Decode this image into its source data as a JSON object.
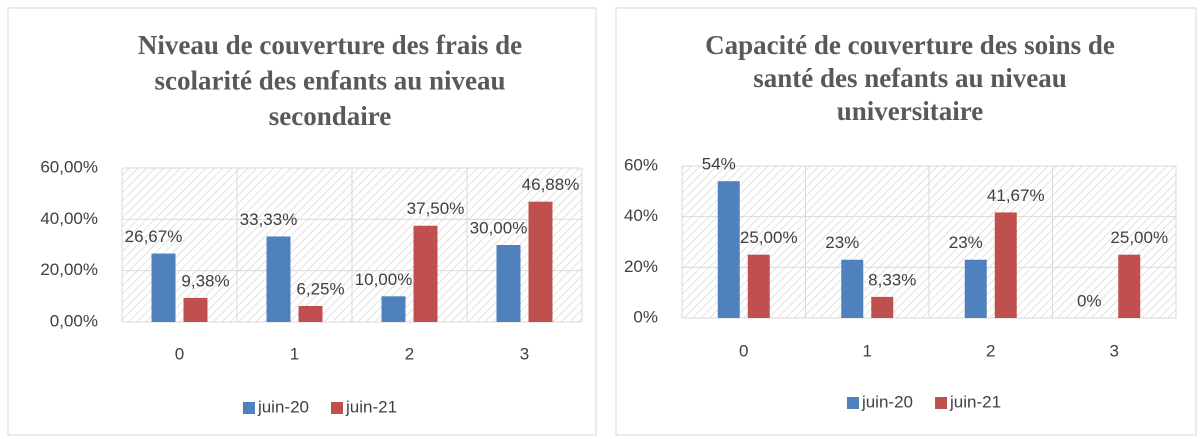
{
  "chart_data": [
    {
      "type": "bar",
      "title": "Niveau de couverture des frais de scolarité des enfants au niveau secondaire",
      "categories": [
        "0",
        "1",
        "2",
        "3"
      ],
      "series": [
        {
          "name": "juin-20",
          "color": "#4f81bd",
          "values": [
            26.67,
            33.33,
            10.0,
            30.0
          ],
          "value_labels": [
            "26,67%",
            "33,33%",
            "10,00%",
            "30,00%"
          ]
        },
        {
          "name": "juin-21",
          "color": "#c0504d",
          "values": [
            9.38,
            6.25,
            37.5,
            46.88
          ],
          "value_labels": [
            "9,38%",
            "6,25%",
            "37,50%",
            "46,88%"
          ]
        }
      ],
      "ylim": [
        0,
        60
      ],
      "yticks": [
        {
          "value": 0,
          "label": "0,00%"
        },
        {
          "value": 20,
          "label": "20,00%"
        },
        {
          "value": 40,
          "label": "40,00%"
        },
        {
          "value": 60,
          "label": "60,00%"
        }
      ],
      "grid": true,
      "legend": "bottom"
    },
    {
      "type": "bar",
      "title": "Capacité de couverture des soins de santé des nefants au niveau universitaire",
      "categories": [
        "0",
        "1",
        "2",
        "3"
      ],
      "series": [
        {
          "name": "juin-20",
          "color": "#4f81bd",
          "values": [
            54,
            23,
            23,
            0
          ],
          "value_labels": [
            "54%",
            "23%",
            "23%",
            "0%"
          ]
        },
        {
          "name": "juin-21",
          "color": "#c0504d",
          "values": [
            25.0,
            8.33,
            41.67,
            25.0
          ],
          "value_labels": [
            "25,00%",
            "8,33%",
            "41,67%",
            "25,00%"
          ]
        }
      ],
      "ylim": [
        0,
        60
      ],
      "yticks": [
        {
          "value": 0,
          "label": "0%"
        },
        {
          "value": 20,
          "label": "20%"
        },
        {
          "value": 40,
          "label": "40%"
        },
        {
          "value": 60,
          "label": "60%"
        }
      ],
      "grid": true,
      "legend": "bottom"
    }
  ]
}
